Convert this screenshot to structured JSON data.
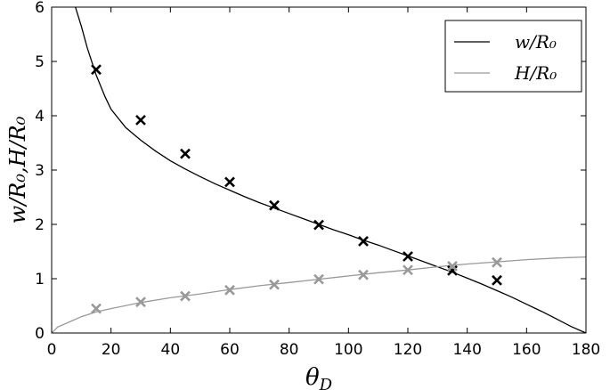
{
  "chart_data": {
    "type": "line",
    "xlabel": "θ",
    "xlabel_sub": "D",
    "ylabel": "w/R₀,H/R₀",
    "xlim": [
      0,
      180
    ],
    "ylim": [
      0,
      6
    ],
    "x_ticks": [
      0,
      20,
      40,
      60,
      80,
      100,
      120,
      140,
      160,
      180
    ],
    "y_ticks": [
      0,
      1,
      2,
      3,
      4,
      5,
      6
    ],
    "grid": false,
    "legend_position": "top-right",
    "colors": {
      "w": "#000000",
      "H": "#999999"
    },
    "series": [
      {
        "name": "w/R₀",
        "kind": "curve",
        "color": "#000000",
        "x": [
          8,
          10,
          12,
          15,
          18,
          20,
          25,
          30,
          35,
          40,
          45,
          50,
          55,
          60,
          65,
          70,
          75,
          80,
          85,
          90,
          95,
          100,
          105,
          110,
          115,
          120,
          125,
          130,
          135,
          140,
          145,
          150,
          155,
          160,
          165,
          170,
          175,
          180
        ],
        "y": [
          6.0,
          5.65,
          5.25,
          4.75,
          4.35,
          4.12,
          3.78,
          3.55,
          3.35,
          3.17,
          3.02,
          2.88,
          2.75,
          2.63,
          2.51,
          2.4,
          2.3,
          2.2,
          2.1,
          2.0,
          1.9,
          1.81,
          1.71,
          1.62,
          1.52,
          1.42,
          1.32,
          1.22,
          1.12,
          1.01,
          0.9,
          0.78,
          0.66,
          0.53,
          0.4,
          0.26,
          0.12,
          0.0
        ]
      },
      {
        "name": "H/R₀",
        "kind": "curve",
        "color": "#999999",
        "x": [
          0,
          2,
          5,
          10,
          15,
          20,
          30,
          40,
          50,
          60,
          70,
          80,
          90,
          100,
          110,
          120,
          130,
          140,
          150,
          160,
          170,
          180
        ],
        "y": [
          0.0,
          0.11,
          0.18,
          0.3,
          0.39,
          0.45,
          0.56,
          0.65,
          0.72,
          0.8,
          0.87,
          0.93,
          0.99,
          1.05,
          1.11,
          1.16,
          1.22,
          1.27,
          1.31,
          1.35,
          1.38,
          1.4
        ]
      },
      {
        "name": "w markers",
        "kind": "markers",
        "color": "#000000",
        "x": [
          15,
          30,
          45,
          60,
          75,
          90,
          105,
          120,
          135,
          150
        ],
        "y": [
          4.85,
          3.92,
          3.3,
          2.78,
          2.35,
          1.99,
          1.69,
          1.41,
          1.15,
          0.97
        ]
      },
      {
        "name": "H markers",
        "kind": "markers",
        "color": "#999999",
        "x": [
          15,
          30,
          45,
          60,
          75,
          90,
          105,
          120,
          135,
          150
        ],
        "y": [
          0.45,
          0.57,
          0.68,
          0.79,
          0.89,
          0.99,
          1.07,
          1.16,
          1.23,
          1.3
        ]
      }
    ]
  }
}
